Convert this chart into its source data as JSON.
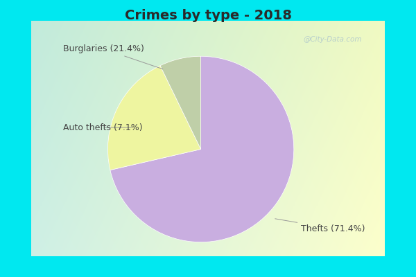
{
  "title": "Crimes by type - 2018",
  "slices": [
    {
      "label": "Thefts",
      "pct": 71.4,
      "color": "#c9aee0"
    },
    {
      "label": "Burglaries",
      "pct": 21.4,
      "color": "#eef5a0"
    },
    {
      "label": "Auto thefts",
      "pct": 7.2,
      "color": "#bfcfa8"
    }
  ],
  "border_color": "#00e8f0",
  "border_thickness": 0.075,
  "title_fontsize": 14,
  "annotation_fontsize": 9,
  "watermark": "@City-Data.com",
  "startangle": 90
}
